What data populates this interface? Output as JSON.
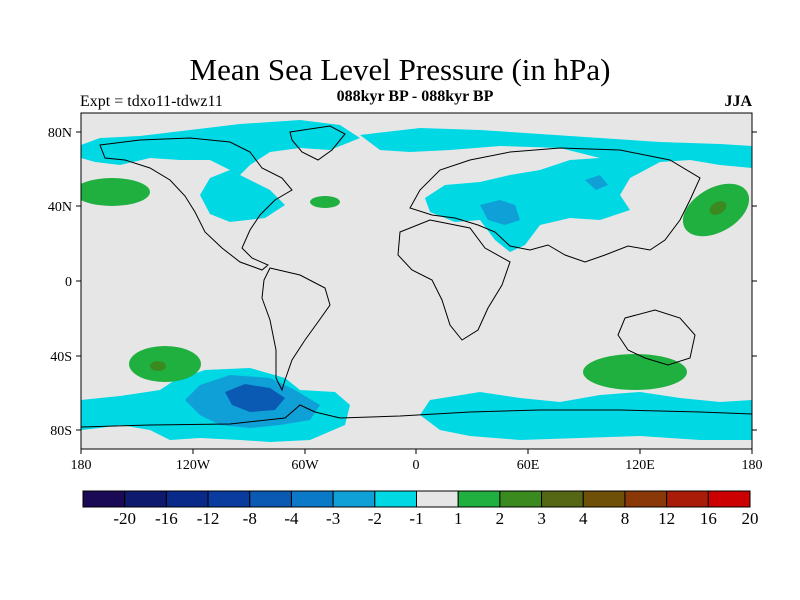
{
  "title": "Mean Sea Level Pressure (in hPa)",
  "left_label": "Expt = tdxo11-tdwz11",
  "center_label": "088kyr BP - 088kyr BP",
  "right_label": "JJA",
  "lat_ticks": [
    "80N",
    "40N",
    "0",
    "40S",
    "80S"
  ],
  "lon_ticks": [
    "180",
    "120W",
    "60W",
    "0",
    "60E",
    "120E",
    "180"
  ],
  "colorbar": {
    "labels": [
      "-20",
      "-16",
      "-12",
      "-8",
      "-4",
      "-3",
      "-2",
      "-1",
      "1",
      "2",
      "3",
      "4",
      "8",
      "12",
      "16",
      "20"
    ],
    "colors": [
      "#1a0a55",
      "#0e1a6e",
      "#0a2a8a",
      "#0a3ca0",
      "#0a5ab4",
      "#0a7ac8",
      "#10a0d8",
      "#00d8e4",
      "#e6e6e6",
      "#20b040",
      "#3a8a20",
      "#556614",
      "#6e5008",
      "#8a3808",
      "#a81c08",
      "#cc0000"
    ]
  },
  "colors": {
    "background_field": "#e6e6e6",
    "neg_light": "#00d8e4",
    "neg_mid": "#10a0d8",
    "neg_dark": "#0a5ab4",
    "pos_light": "#20b040",
    "pos_dark": "#3a8a20"
  }
}
